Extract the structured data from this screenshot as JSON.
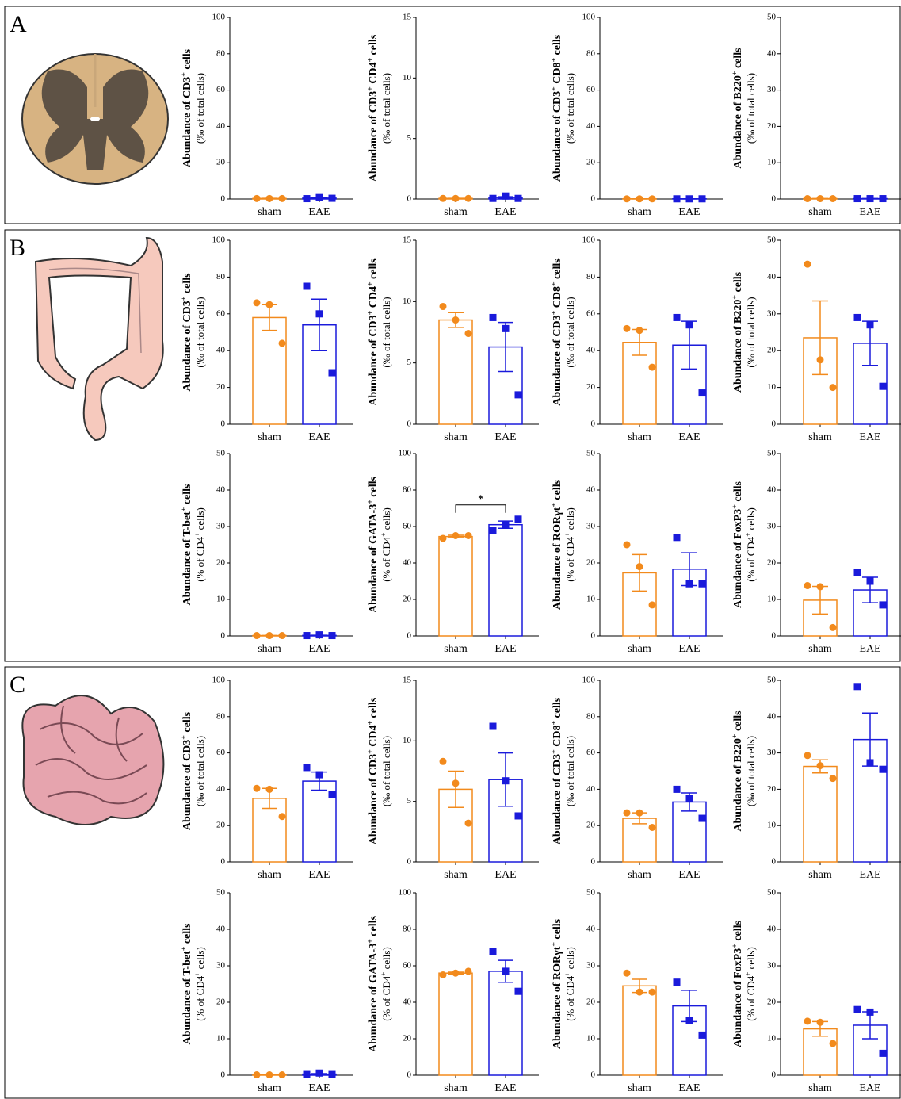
{
  "panel_labels": [
    "A",
    "B",
    "C"
  ],
  "chart_data": [
    {
      "type": "bar",
      "ylabel": [
        {
          "text": "Abundance of CD3"
        },
        {
          "sup": "+"
        },
        {
          "text": " cells"
        }
      ],
      "ylabel2": [
        {
          "text": "(‰ of total cells)"
        }
      ],
      "categories": [
        "sham",
        "EAE"
      ],
      "values": [
        0.3,
        0.5
      ],
      "errors": [
        0.1,
        0.2
      ],
      "points": [
        [
          0.3,
          0.3,
          0.3
        ],
        [
          0.2,
          0.8,
          0.4
        ]
      ],
      "colors": [
        "#f28a1c",
        "#1a1adb"
      ],
      "markers": [
        "circle",
        "square"
      ],
      "ylim": [
        0,
        100
      ],
      "yticks": [
        0,
        20,
        40,
        60,
        80,
        100
      ]
    },
    {
      "type": "bar",
      "ylabel": [
        {
          "text": "Abundance of CD3"
        },
        {
          "sup": "+"
        },
        {
          "text": " CD4"
        },
        {
          "sup": "+"
        },
        {
          "text": " cells"
        }
      ],
      "ylabel2": [
        {
          "text": "(‰ of total cells)"
        }
      ],
      "categories": [
        "sham",
        "EAE"
      ],
      "values": [
        0.05,
        0.12
      ],
      "errors": [
        0.01,
        0.07
      ],
      "points": [
        [
          0.05,
          0.05,
          0.05
        ],
        [
          0.05,
          0.25,
          0.05
        ]
      ],
      "colors": [
        "#f28a1c",
        "#1a1adb"
      ],
      "markers": [
        "circle",
        "square"
      ],
      "ylim": [
        0,
        15
      ],
      "yticks": [
        0,
        5,
        10,
        15
      ]
    },
    {
      "type": "bar",
      "ylabel": [
        {
          "text": "Abundance of CD3"
        },
        {
          "sup": "+"
        },
        {
          "text": " CD8"
        },
        {
          "sup": "+"
        },
        {
          "text": " cells"
        }
      ],
      "ylabel2": [
        {
          "text": "(‰ of total cells)"
        }
      ],
      "categories": [
        "sham",
        "EAE"
      ],
      "values": [
        0.1,
        0.1
      ],
      "errors": [
        0.02,
        0.02
      ],
      "points": [
        [
          0.1,
          0.1,
          0.1
        ],
        [
          0.1,
          0.1,
          0.1
        ]
      ],
      "colors": [
        "#f28a1c",
        "#1a1adb"
      ],
      "markers": [
        "circle",
        "square"
      ],
      "ylim": [
        0,
        100
      ],
      "yticks": [
        0,
        20,
        40,
        60,
        80,
        100
      ]
    },
    {
      "type": "bar",
      "ylabel": [
        {
          "text": "Abundance of B220"
        },
        {
          "sup": "+"
        },
        {
          "text": " cells"
        }
      ],
      "ylabel2": [
        {
          "text": "(‰ of total cells)"
        }
      ],
      "categories": [
        "sham",
        "EAE"
      ],
      "values": [
        0.1,
        0.1
      ],
      "errors": [
        0.02,
        0.02
      ],
      "points": [
        [
          0.1,
          0.1,
          0.1
        ],
        [
          0.1,
          0.1,
          0.1
        ]
      ],
      "colors": [
        "#f28a1c",
        "#1a1adb"
      ],
      "markers": [
        "circle",
        "square"
      ],
      "ylim": [
        0,
        50
      ],
      "yticks": [
        0,
        10,
        20,
        30,
        40,
        50
      ]
    },
    {
      "type": "bar",
      "ylabel": [
        {
          "text": "Abundance of CD3"
        },
        {
          "sup": "+"
        },
        {
          "text": " cells"
        }
      ],
      "ylabel2": [
        {
          "text": "(‰ of total cells)"
        }
      ],
      "categories": [
        "sham",
        "EAE"
      ],
      "values": [
        58,
        54
      ],
      "errors": [
        7,
        14
      ],
      "points": [
        [
          66,
          65,
          44
        ],
        [
          75,
          60,
          28
        ]
      ],
      "colors": [
        "#f28a1c",
        "#1a1adb"
      ],
      "markers": [
        "circle",
        "square"
      ],
      "ylim": [
        0,
        100
      ],
      "yticks": [
        0,
        20,
        40,
        60,
        80,
        100
      ]
    },
    {
      "type": "bar",
      "ylabel": [
        {
          "text": "Abundance of CD3"
        },
        {
          "sup": "+"
        },
        {
          "text": " CD4"
        },
        {
          "sup": "+"
        },
        {
          "text": " cells"
        }
      ],
      "ylabel2": [
        {
          "text": "(‰ of total cells)"
        }
      ],
      "categories": [
        "sham",
        "EAE"
      ],
      "values": [
        8.5,
        6.3
      ],
      "errors": [
        0.6,
        2.0
      ],
      "points": [
        [
          9.6,
          8.5,
          7.4
        ],
        [
          8.7,
          7.8,
          2.4
        ]
      ],
      "colors": [
        "#f28a1c",
        "#1a1adb"
      ],
      "markers": [
        "circle",
        "square"
      ],
      "ylim": [
        0,
        15
      ],
      "yticks": [
        0,
        5,
        10,
        15
      ]
    },
    {
      "type": "bar",
      "ylabel": [
        {
          "text": "Abundance of CD3"
        },
        {
          "sup": "+"
        },
        {
          "text": " CD8"
        },
        {
          "sup": "+"
        },
        {
          "text": " cells"
        }
      ],
      "ylabel2": [
        {
          "text": "(‰ of total cells)"
        }
      ],
      "categories": [
        "sham",
        "EAE"
      ],
      "values": [
        44.5,
        43
      ],
      "errors": [
        7,
        13
      ],
      "points": [
        [
          52,
          51,
          31
        ],
        [
          58,
          54,
          17
        ]
      ],
      "colors": [
        "#f28a1c",
        "#1a1adb"
      ],
      "markers": [
        "circle",
        "square"
      ],
      "ylim": [
        0,
        100
      ],
      "yticks": [
        0,
        20,
        40,
        60,
        80,
        100
      ]
    },
    {
      "type": "bar",
      "ylabel": [
        {
          "text": "Abundance of B220"
        },
        {
          "sup": "+"
        },
        {
          "text": " cells"
        }
      ],
      "ylabel2": [
        {
          "text": "(‰ of total cells)"
        }
      ],
      "categories": [
        "sham",
        "EAE"
      ],
      "values": [
        23.5,
        22
      ],
      "errors": [
        10,
        6
      ],
      "points": [
        [
          43.5,
          17.5,
          10
        ],
        [
          29,
          27,
          10.3
        ]
      ],
      "colors": [
        "#f28a1c",
        "#1a1adb"
      ],
      "markers": [
        "circle",
        "square"
      ],
      "ylim": [
        0,
        50
      ],
      "yticks": [
        0,
        10,
        20,
        30,
        40,
        50
      ]
    },
    {
      "type": "bar",
      "ylabel": [
        {
          "text": "Abundance of T-bet"
        },
        {
          "sup": "+"
        },
        {
          "text": " cells"
        }
      ],
      "ylabel2": [
        {
          "text": "(% of CD4"
        },
        {
          "sup": "+"
        },
        {
          "text": " cells)"
        }
      ],
      "categories": [
        "sham",
        "EAE"
      ],
      "values": [
        0.1,
        0.15
      ],
      "errors": [
        0.02,
        0.05
      ],
      "points": [
        [
          0.1,
          0.1,
          0.1
        ],
        [
          0.1,
          0.3,
          0.1
        ]
      ],
      "colors": [
        "#f28a1c",
        "#1a1adb"
      ],
      "markers": [
        "circle",
        "square"
      ],
      "ylim": [
        0,
        50
      ],
      "yticks": [
        0,
        10,
        20,
        30,
        40,
        50
      ]
    },
    {
      "type": "bar",
      "ylabel": [
        {
          "text": "Abundance of GATA-3"
        },
        {
          "sup": "+"
        },
        {
          "text": " cells"
        }
      ],
      "ylabel2": [
        {
          "text": "(% of CD4"
        },
        {
          "sup": "+"
        },
        {
          "text": " cells)"
        }
      ],
      "categories": [
        "sham",
        "EAE"
      ],
      "values": [
        54.5,
        61
      ],
      "errors": [
        0.7,
        2
      ],
      "points": [
        [
          53.5,
          55,
          55
        ],
        [
          58,
          61,
          64
        ]
      ],
      "colors": [
        "#f28a1c",
        "#1a1adb"
      ],
      "markers": [
        "circle",
        "square"
      ],
      "ylim": [
        0,
        100
      ],
      "yticks": [
        0,
        20,
        40,
        60,
        80,
        100
      ],
      "annotation": "*"
    },
    {
      "type": "bar",
      "ylabel": [
        {
          "text": "Abundance of RORγt"
        },
        {
          "sup": "+"
        },
        {
          "text": " cells"
        }
      ],
      "ylabel2": [
        {
          "text": "(% of CD4"
        },
        {
          "sup": "+"
        },
        {
          "text": " cells)"
        }
      ],
      "categories": [
        "sham",
        "EAE"
      ],
      "values": [
        17.3,
        18.3
      ],
      "errors": [
        5,
        4.5
      ],
      "points": [
        [
          25,
          19,
          8.5
        ],
        [
          27,
          14.3,
          14.3
        ]
      ],
      "colors": [
        "#f28a1c",
        "#1a1adb"
      ],
      "markers": [
        "circle",
        "square"
      ],
      "ylim": [
        0,
        50
      ],
      "yticks": [
        0,
        10,
        20,
        30,
        40,
        50
      ]
    },
    {
      "type": "bar",
      "ylabel": [
        {
          "text": "Abundance of FoxP3"
        },
        {
          "sup": "+"
        },
        {
          "text": " cells"
        }
      ],
      "ylabel2": [
        {
          "text": "(% of CD4"
        },
        {
          "sup": "+"
        },
        {
          "text": " cells)"
        }
      ],
      "categories": [
        "sham",
        "EAE"
      ],
      "values": [
        9.8,
        12.6
      ],
      "errors": [
        3.8,
        3.5
      ],
      "points": [
        [
          13.8,
          13.5,
          2.3
        ],
        [
          17.3,
          15,
          8.5
        ]
      ],
      "colors": [
        "#f28a1c",
        "#1a1adb"
      ],
      "markers": [
        "circle",
        "square"
      ],
      "ylim": [
        0,
        50
      ],
      "yticks": [
        0,
        10,
        20,
        30,
        40,
        50
      ]
    },
    {
      "type": "bar",
      "ylabel": [
        {
          "text": "Abundance of CD3"
        },
        {
          "sup": "+"
        },
        {
          "text": " cells"
        }
      ],
      "ylabel2": [
        {
          "text": "(‰ of total cells)"
        }
      ],
      "categories": [
        "sham",
        "EAE"
      ],
      "values": [
        35,
        44.5
      ],
      "errors": [
        5.5,
        5
      ],
      "points": [
        [
          40.5,
          40,
          25
        ],
        [
          52,
          48,
          37
        ]
      ],
      "colors": [
        "#f28a1c",
        "#1a1adb"
      ],
      "markers": [
        "circle",
        "square"
      ],
      "ylim": [
        0,
        100
      ],
      "yticks": [
        0,
        20,
        40,
        60,
        80,
        100
      ]
    },
    {
      "type": "bar",
      "ylabel": [
        {
          "text": "Abundance of CD3"
        },
        {
          "sup": "+"
        },
        {
          "text": " CD4"
        },
        {
          "sup": "+"
        },
        {
          "text": " cells"
        }
      ],
      "ylabel2": [
        {
          "text": "(‰ of total cells)"
        }
      ],
      "categories": [
        "sham",
        "EAE"
      ],
      "values": [
        6,
        6.8
      ],
      "errors": [
        1.5,
        2.2
      ],
      "points": [
        [
          8.3,
          6.5,
          3.2
        ],
        [
          11.2,
          6.7,
          3.8
        ]
      ],
      "colors": [
        "#f28a1c",
        "#1a1adb"
      ],
      "markers": [
        "circle",
        "square"
      ],
      "ylim": [
        0,
        15
      ],
      "yticks": [
        0,
        5,
        10,
        15
      ]
    },
    {
      "type": "bar",
      "ylabel": [
        {
          "text": "Abundance of CD3"
        },
        {
          "sup": "+"
        },
        {
          "text": " CD8"
        },
        {
          "sup": "+"
        },
        {
          "text": " cells"
        }
      ],
      "ylabel2": [
        {
          "text": "(‰ of total cells)"
        }
      ],
      "categories": [
        "sham",
        "EAE"
      ],
      "values": [
        24,
        33
      ],
      "errors": [
        3,
        5
      ],
      "points": [
        [
          27,
          27,
          19
        ],
        [
          40,
          35,
          24
        ]
      ],
      "colors": [
        "#f28a1c",
        "#1a1adb"
      ],
      "markers": [
        "circle",
        "square"
      ],
      "ylim": [
        0,
        100
      ],
      "yticks": [
        0,
        20,
        40,
        60,
        80,
        100
      ]
    },
    {
      "type": "bar",
      "ylabel": [
        {
          "text": "Abundance of B220"
        },
        {
          "sup": "+"
        },
        {
          "text": " cells"
        }
      ],
      "ylabel2": [
        {
          "text": "(‰ of total cells)"
        }
      ],
      "categories": [
        "sham",
        "EAE"
      ],
      "values": [
        26.3,
        33.7
      ],
      "errors": [
        1.8,
        7.3
      ],
      "points": [
        [
          29.3,
          26.5,
          23
        ],
        [
          48.3,
          27.3,
          25.5
        ]
      ],
      "colors": [
        "#f28a1c",
        "#1a1adb"
      ],
      "markers": [
        "circle",
        "square"
      ],
      "ylim": [
        0,
        50
      ],
      "yticks": [
        0,
        10,
        20,
        30,
        40,
        50
      ]
    },
    {
      "type": "bar",
      "ylabel": [
        {
          "text": "Abundance of T-bet"
        },
        {
          "sup": "+"
        },
        {
          "text": " cells"
        }
      ],
      "ylabel2": [
        {
          "text": "(% of CD4"
        },
        {
          "sup": "+"
        },
        {
          "text": " cells)"
        }
      ],
      "categories": [
        "sham",
        "EAE"
      ],
      "values": [
        0.1,
        0.3
      ],
      "errors": [
        0.02,
        0.13
      ],
      "points": [
        [
          0.1,
          0.1,
          0.1
        ],
        [
          0.2,
          0.6,
          0.2
        ]
      ],
      "colors": [
        "#f28a1c",
        "#1a1adb"
      ],
      "markers": [
        "circle",
        "square"
      ],
      "ylim": [
        0,
        50
      ],
      "yticks": [
        0,
        10,
        20,
        30,
        40,
        50
      ]
    },
    {
      "type": "bar",
      "ylabel": [
        {
          "text": "Abundance of GATA-3"
        },
        {
          "sup": "+"
        },
        {
          "text": " cells"
        }
      ],
      "ylabel2": [
        {
          "text": "(% of CD4"
        },
        {
          "sup": "+"
        },
        {
          "text": " cells)"
        }
      ],
      "categories": [
        "sham",
        "EAE"
      ],
      "values": [
        56,
        57
      ],
      "errors": [
        0.5,
        6
      ],
      "points": [
        [
          55,
          56,
          57
        ],
        [
          68,
          57,
          46
        ]
      ],
      "colors": [
        "#f28a1c",
        "#1a1adb"
      ],
      "markers": [
        "circle",
        "square"
      ],
      "ylim": [
        0,
        100
      ],
      "yticks": [
        0,
        20,
        40,
        60,
        80,
        100
      ]
    },
    {
      "type": "bar",
      "ylabel": [
        {
          "text": "Abundance of RORγt"
        },
        {
          "sup": "+"
        },
        {
          "text": " cells"
        }
      ],
      "ylabel2": [
        {
          "text": "(% of CD4"
        },
        {
          "sup": "+"
        },
        {
          "text": " cells)"
        }
      ],
      "categories": [
        "sham",
        "EAE"
      ],
      "values": [
        24.5,
        19
      ],
      "errors": [
        1.8,
        4.3
      ],
      "points": [
        [
          28,
          22.8,
          22.8
        ],
        [
          25.5,
          15,
          11
        ]
      ],
      "colors": [
        "#f28a1c",
        "#1a1adb"
      ],
      "markers": [
        "circle",
        "square"
      ],
      "ylim": [
        0,
        50
      ],
      "yticks": [
        0,
        10,
        20,
        30,
        40,
        50
      ]
    },
    {
      "type": "bar",
      "ylabel": [
        {
          "text": "Abundance of FoxP3"
        },
        {
          "sup": "+"
        },
        {
          "text": " cells"
        }
      ],
      "ylabel2": [
        {
          "text": "(% of CD4"
        },
        {
          "sup": "+"
        },
        {
          "text": " cells)"
        }
      ],
      "categories": [
        "sham",
        "EAE"
      ],
      "values": [
        12.7,
        13.7
      ],
      "errors": [
        2,
        3.7
      ],
      "points": [
        [
          14.8,
          14.5,
          8.7
        ],
        [
          18,
          17.3,
          6
        ]
      ],
      "colors": [
        "#f28a1c",
        "#1a1adb"
      ],
      "markers": [
        "circle",
        "square"
      ],
      "ylim": [
        0,
        50
      ],
      "yticks": [
        0,
        10,
        20,
        30,
        40,
        50
      ]
    }
  ]
}
